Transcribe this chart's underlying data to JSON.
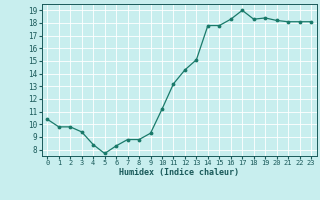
{
  "x": [
    0,
    1,
    2,
    3,
    4,
    5,
    6,
    7,
    8,
    9,
    10,
    11,
    12,
    13,
    14,
    15,
    16,
    17,
    18,
    19,
    20,
    21,
    22,
    23
  ],
  "y": [
    10.4,
    9.8,
    9.8,
    9.4,
    8.4,
    7.7,
    8.3,
    8.8,
    8.8,
    9.3,
    11.2,
    13.2,
    14.3,
    15.1,
    17.8,
    17.8,
    18.3,
    19.0,
    18.3,
    18.4,
    18.2,
    18.1,
    18.1,
    18.1
  ],
  "xlabel": "Humidex (Indice chaleur)",
  "xlim": [
    -0.5,
    23.5
  ],
  "ylim": [
    7.5,
    19.5
  ],
  "yticks": [
    8,
    9,
    10,
    11,
    12,
    13,
    14,
    15,
    16,
    17,
    18,
    19
  ],
  "xticks": [
    0,
    1,
    2,
    3,
    4,
    5,
    6,
    7,
    8,
    9,
    10,
    11,
    12,
    13,
    14,
    15,
    16,
    17,
    18,
    19,
    20,
    21,
    22,
    23
  ],
  "line_color": "#1a7a6a",
  "bg_color": "#c8eeee",
  "grid_color": "#ffffff",
  "tick_color": "#1a5a5a",
  "label_color": "#1a5a5a"
}
